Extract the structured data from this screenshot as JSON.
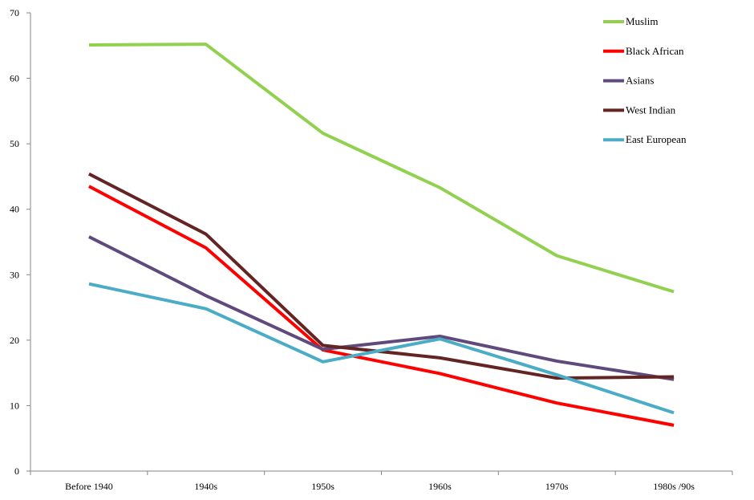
{
  "chart_data": {
    "type": "line",
    "categories": [
      "Before 1940",
      "1940s",
      "1950s",
      "1960s",
      "1970s",
      "1980s /90s"
    ],
    "ylim": [
      0,
      70
    ],
    "yticks": [
      0,
      10,
      20,
      30,
      40,
      50,
      60,
      70
    ],
    "grid": false,
    "legend_position": "top-right",
    "series": [
      {
        "name": "Muslim",
        "color": "#92d050",
        "values": [
          65.1,
          65.2,
          51.6,
          43.3,
          32.9,
          27.4
        ]
      },
      {
        "name": "Black African",
        "color": "#ff0000",
        "values": [
          43.5,
          34.1,
          18.5,
          14.9,
          10.4,
          7.0
        ]
      },
      {
        "name": "Asians",
        "color": "#604a7b",
        "values": [
          35.8,
          26.8,
          18.6,
          20.6,
          16.8,
          14.0
        ]
      },
      {
        "name": "West Indian",
        "color": "#632523",
        "values": [
          45.4,
          36.2,
          19.2,
          17.3,
          14.2,
          14.4
        ]
      },
      {
        "name": "East European",
        "color": "#4bacc6",
        "values": [
          28.6,
          24.8,
          16.7,
          20.2,
          14.7,
          8.9
        ]
      }
    ]
  }
}
